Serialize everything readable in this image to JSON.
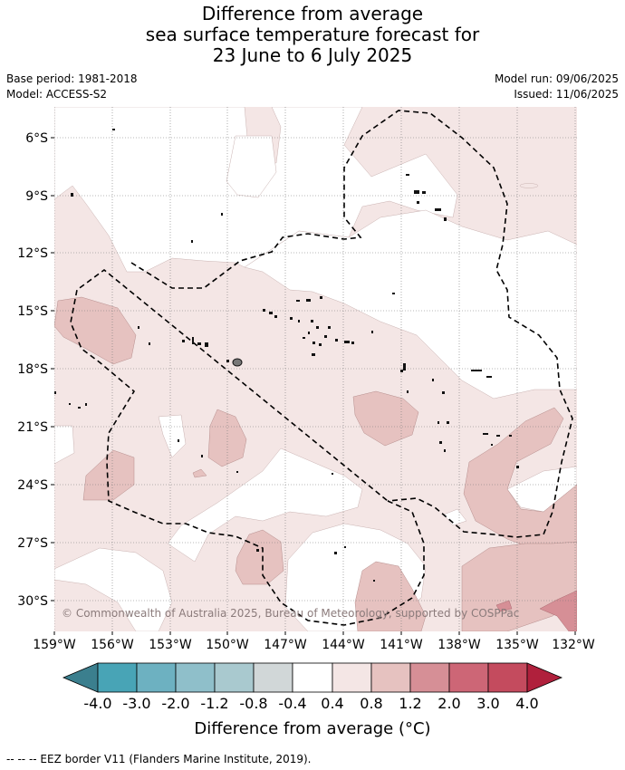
{
  "title": {
    "line1": "Difference from average",
    "line2": "sea surface temperature forecast for",
    "line3": "23 June to 6 July 2025"
  },
  "meta": {
    "base_period": "Base period: 1981-2018",
    "model": "Model: ACCESS-S2",
    "model_run": "Model run: 09/06/2025",
    "issued": "Issued: 11/06/2025"
  },
  "map": {
    "lat_labels": [
      "6°S",
      "9°S",
      "12°S",
      "15°S",
      "18°S",
      "21°S",
      "24°S",
      "27°S",
      "30°S"
    ],
    "lon_labels": [
      "159°W",
      "156°W",
      "153°W",
      "150°W",
      "147°W",
      "144°W",
      "141°W",
      "138°W",
      "135°W",
      "132°W"
    ],
    "copyright": "© Commonwealth of Australia 2025, Bureau of Meteorology, supported by COSPPac"
  },
  "colorbar": {
    "title": "Difference from average (°C)",
    "tick_labels": [
      "-4.0",
      "-3.0",
      "-2.0",
      "-1.2",
      "-0.8",
      "-0.4",
      "0.4",
      "0.8",
      "1.2",
      "2.0",
      "3.0",
      "4.0"
    ],
    "colors": {
      "below_min": "#3b7f8e",
      "c1": "#48a4b6",
      "c2": "#6db1c1",
      "c3": "#8fbfca",
      "c4": "#a9c9cf",
      "c5": "#d1d7d8",
      "neutral": "#ffffff",
      "c6": "#f4e6e5",
      "c7": "#e6c2c0",
      "c8": "#d68f96",
      "c9": "#cd6676",
      "c10": "#c44b5e",
      "above_max": "#b0203c"
    }
  },
  "legend_note": "--  --  -- EEZ border V11 (Flanders Marine Institute, 2019)."
}
